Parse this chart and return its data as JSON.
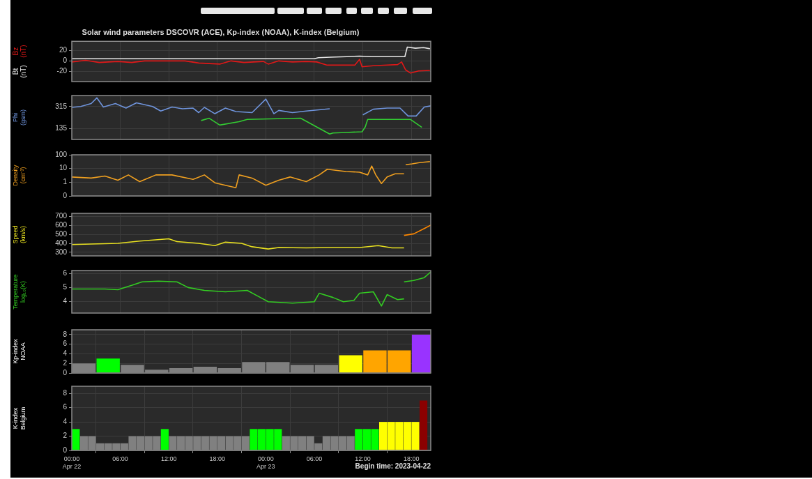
{
  "chart_data": [
    {
      "type": "line",
      "title": "Solar wind parameters DSCOVR (ACE), Kp-index (NOAA), K-index (Belgium)",
      "legend": "left",
      "grid": true,
      "tick_labels": "y",
      "marker": "none",
      "xlim": [
        "2023-04-22T00:00",
        "2023-04-23T20:24"
      ],
      "xticks": [
        {
          "value": "2023-04-22T00:00",
          "label": null
        },
        {
          "value": "2023-04-22T06:00",
          "label": null
        },
        {
          "value": "2023-04-22T12:00",
          "label": null
        },
        {
          "value": "2023-04-22T18:00",
          "label": null
        },
        {
          "value": "2023-04-23T00:00",
          "label": null
        },
        {
          "value": "2023-04-23T06:00",
          "label": null
        },
        {
          "value": "2023-04-23T12:00",
          "label": null
        },
        {
          "value": "2023-04-23T18:00",
          "label": null
        }
      ],
      "ylim": [
        -39,
        37
      ],
      "yticks": [
        -20,
        0,
        20
      ],
      "series": [
        {
          "name": "Bz (nT)",
          "color": "#e01818",
          "x": [
            "2023-04-22T00:00",
            "2023-04-22T01:42",
            "2023-04-22T03:24",
            "2023-04-22T05:42",
            "2023-04-22T07:24",
            "2023-04-22T09:00",
            "2023-04-22T12:24",
            "2023-04-22T14:00",
            "2023-04-22T15:42",
            "2023-04-22T18:18",
            "2023-04-22T19:42",
            "2023-04-22T21:18",
            "2023-04-22T23:42",
            "2023-04-23T00:18",
            "2023-04-23T01:36",
            "2023-04-23T03:18",
            "2023-04-23T05:00",
            "2023-04-23T06:18",
            "2023-04-23T07:36",
            "2023-04-23T11:00",
            "2023-04-23T11:36",
            "2023-04-23T11:54",
            "2023-04-23T13:18",
            "2023-04-23T16:18",
            "2023-04-23T16:48",
            "2023-04-23T17:18",
            "2023-04-23T17:54",
            "2023-04-23T18:54",
            "2023-04-23T20:18"
          ],
          "values": [
            -2,
            1,
            -3,
            -1,
            -3,
            0,
            0,
            0,
            -4,
            -6,
            0,
            -3,
            -1,
            -6,
            0,
            -2,
            -1,
            -2,
            -8,
            -8,
            3,
            -11,
            -9,
            -7,
            -2,
            -17,
            -23,
            -19,
            -18
          ]
        },
        {
          "name": "Bt (nT)",
          "color": "#e6e6e6",
          "x": [
            "2023-04-22T00:00",
            "2023-04-22T04:00",
            "2023-04-22T08:00",
            "2023-04-22T12:00",
            "2023-04-22T16:00",
            "2023-04-22T20:00",
            "2023-04-23T00:00",
            "2023-04-23T04:00",
            "2023-04-23T06:00",
            "2023-04-23T06:30",
            "2023-04-23T08:00",
            "2023-04-23T10:00",
            "2023-04-23T11:36",
            "2023-04-23T13:00",
            "2023-04-23T15:00",
            "2023-04-23T17:12",
            "2023-04-23T17:30",
            "2023-04-23T18:30",
            "2023-04-23T19:30",
            "2023-04-23T20:18"
          ],
          "values": [
            4,
            4,
            4,
            4,
            4,
            4,
            4,
            4,
            4,
            6,
            7,
            8,
            9,
            8,
            8,
            8,
            26,
            24,
            25,
            23
          ]
        }
      ]
    },
    {
      "type": "line",
      "ylabel": "Phi (gsm)",
      "grid": true,
      "tick_labels": "y",
      "marker": "none",
      "xlim": [
        "2023-04-22T00:00",
        "2023-04-23T20:24"
      ],
      "xticks": [
        {
          "value": "2023-04-22T00:00",
          "label": null
        },
        {
          "value": "2023-04-22T06:00",
          "label": null
        },
        {
          "value": "2023-04-22T12:00",
          "label": null
        },
        {
          "value": "2023-04-22T18:00",
          "label": null
        },
        {
          "value": "2023-04-23T00:00",
          "label": null
        },
        {
          "value": "2023-04-23T06:00",
          "label": null
        },
        {
          "value": "2023-04-23T12:00",
          "label": null
        },
        {
          "value": "2023-04-23T18:00",
          "label": null
        }
      ],
      "ylim": [
        45,
        405
      ],
      "yticks": [
        135,
        315
      ],
      "series": [
        {
          "color": "#6f94dc",
          "x": [
            "2023-04-22T00:00",
            "2023-04-22T01:06",
            "2023-04-22T02:24",
            "2023-04-22T03:06",
            "2023-04-22T03:54",
            "2023-04-22T05:24",
            "2023-04-22T06:42",
            "2023-04-22T08:00",
            "2023-04-22T10:00",
            "2023-04-22T11:00",
            "2023-04-22T12:24",
            "2023-04-22T13:42",
            "2023-04-22T15:00",
            "2023-04-22T15:42",
            "2023-04-22T16:24",
            "2023-04-22T17:42",
            "2023-04-22T19:00",
            "2023-04-22T20:18",
            "2023-04-22T22:18",
            "2023-04-23T00:00",
            "2023-04-23T01:00",
            "2023-04-23T01:36",
            "2023-04-23T03:18",
            "2023-04-23T05:00",
            "2023-04-23T07:54",
            "2023-04-23T08:06",
            "2023-04-23T12:00",
            "2023-04-23T13:18",
            "2023-04-23T15:00",
            "2023-04-23T16:36",
            "2023-04-23T17:36",
            "2023-04-23T18:36",
            "2023-04-23T19:36",
            "2023-04-23T20:24"
          ],
          "values": [
            308,
            315,
            339,
            386,
            311,
            339,
            302,
            345,
            315,
            278,
            311,
            296,
            302,
            265,
            308,
            256,
            302,
            274,
            265,
            376,
            256,
            283,
            265,
            278,
            296,
            null,
            246,
            293,
            302,
            302,
            237,
            237,
            311,
            320
          ]
        },
        {
          "color": "#33cc33",
          "x": [
            "2023-04-22T16:00",
            "2023-04-22T17:00",
            "2023-04-22T18:18",
            "2023-04-22T20:42",
            "2023-04-22T21:42",
            "2023-04-23T04:18",
            "2023-04-23T07:54",
            "2023-04-23T08:18",
            "2023-04-23T09:54",
            "2023-04-23T11:54",
            "2023-04-23T12:18",
            "2023-04-23T12:36",
            "2023-04-23T17:54",
            "2023-04-23T19:18"
          ],
          "values": [
            200,
            219,
            163,
            191,
            209,
            219,
            89,
            98,
            102,
            108,
            148,
            209,
            209,
            144
          ]
        }
      ]
    },
    {
      "type": "line",
      "ylabel": "Density (cm⁻³)",
      "grid": true,
      "tick_labels": "y",
      "marker": "none",
      "log": "y",
      "xlim": [
        "2023-04-22T00:00",
        "2023-04-23T20:24"
      ],
      "xticks": [
        {
          "value": "2023-04-22T00:00",
          "label": null
        },
        {
          "value": "2023-04-22T06:00",
          "label": null
        },
        {
          "value": "2023-04-22T12:00",
          "label": null
        },
        {
          "value": "2023-04-22T18:00",
          "label": null
        },
        {
          "value": "2023-04-23T00:00",
          "label": null
        },
        {
          "value": "2023-04-23T06:00",
          "label": null
        },
        {
          "value": "2023-04-23T12:00",
          "label": null
        },
        {
          "value": "2023-04-23T18:00",
          "label": null
        }
      ],
      "ylim": [
        0.1,
        100
      ],
      "yticks": [
        {
          "value": 0.1,
          "label": "0"
        },
        1,
        10,
        100
      ],
      "series": [
        {
          "color": "#f0a020",
          "x": [
            "2023-04-22T00:00",
            "2023-04-22T02:24",
            "2023-04-22T04:06",
            "2023-04-22T05:42",
            "2023-04-22T07:00",
            "2023-04-22T08:24",
            "2023-04-22T10:24",
            "2023-04-22T12:24",
            "2023-04-22T15:00",
            "2023-04-22T16:24",
            "2023-04-22T17:42",
            "2023-04-22T19:00",
            "2023-04-22T20:18",
            "2023-04-22T20:42",
            "2023-04-22T22:18",
            "2023-04-23T00:00",
            "2023-04-23T01:36",
            "2023-04-23T03:00",
            "2023-04-23T05:00",
            "2023-04-23T06:36",
            "2023-04-23T07:36",
            "2023-04-23T09:54",
            "2023-04-23T11:36",
            "2023-04-23T12:36",
            "2023-04-23T13:06",
            "2023-04-23T13:36",
            "2023-04-23T14:18",
            "2023-04-23T15:00",
            "2023-04-23T16:00",
            "2023-04-23T17:06"
          ],
          "values": [
            2.4,
            2.0,
            2.8,
            1.4,
            3.4,
            1.1,
            3.4,
            3.4,
            1.6,
            3.4,
            0.9,
            0.6,
            0.4,
            3.4,
            2.0,
            0.6,
            1.4,
            2.4,
            1.1,
            3.4,
            8.8,
            6.0,
            5.4,
            3.4,
            15,
            3.4,
            0.8,
            2.4,
            4.1,
            4.1
          ]
        },
        {
          "color": "#f0a020",
          "x": [
            "2023-04-23T17:18",
            "2023-04-23T18:06",
            "2023-04-23T19:00",
            "2023-04-23T20:18"
          ],
          "values": [
            19,
            22,
            27,
            32
          ]
        }
      ]
    },
    {
      "type": "line",
      "ylabel": "Speed (km/s)",
      "grid": true,
      "tick_labels": "y",
      "marker": "none",
      "xlim": [
        "2023-04-22T00:00",
        "2023-04-23T20:24"
      ],
      "xticks": [
        {
          "value": "2023-04-22T00:00",
          "label": null
        },
        {
          "value": "2023-04-22T06:00",
          "label": null
        },
        {
          "value": "2023-04-22T12:00",
          "label": null
        },
        {
          "value": "2023-04-22T18:00",
          "label": null
        },
        {
          "value": "2023-04-23T00:00",
          "label": null
        },
        {
          "value": "2023-04-23T06:00",
          "label": null
        },
        {
          "value": "2023-04-23T12:00",
          "label": null
        },
        {
          "value": "2023-04-23T18:00",
          "label": null
        }
      ],
      "ylim": [
        260,
        735
      ],
      "yticks": [
        300,
        400,
        500,
        600,
        700
      ],
      "series": [
        {
          "color": "#e8e020",
          "x": [
            "2023-04-22T00:00",
            "2023-04-22T02:24",
            "2023-04-22T05:42",
            "2023-04-22T08:24",
            "2023-04-22T12:00",
            "2023-04-22T13:00",
            "2023-04-22T15:42",
            "2023-04-22T17:42",
            "2023-04-22T19:00",
            "2023-04-22T21:00",
            "2023-04-22T22:18",
            "2023-04-23T00:18",
            "2023-04-23T01:36",
            "2023-04-23T05:00",
            "2023-04-23T08:18",
            "2023-04-23T11:36",
            "2023-04-23T13:54",
            "2023-04-23T15:36",
            "2023-04-23T17:06"
          ],
          "values": [
            387,
            392,
            400,
            425,
            451,
            420,
            400,
            375,
            413,
            400,
            362,
            337,
            354,
            349,
            354,
            354,
            375,
            349,
            349
          ]
        },
        {
          "color": "#ff8800",
          "x": [
            "2023-04-23T17:06",
            "2023-04-23T18:18",
            "2023-04-23T19:36",
            "2023-04-23T20:24"
          ],
          "values": [
            489,
            506,
            565,
            603
          ]
        }
      ]
    },
    {
      "type": "line",
      "ylabel": "Temperature log₁₀(K)",
      "grid": true,
      "tick_labels": "y",
      "marker": "none",
      "xlim": [
        "2023-04-22T00:00",
        "2023-04-23T20:24"
      ],
      "xticks": [
        {
          "value": "2023-04-22T00:00",
          "label": null
        },
        {
          "value": "2023-04-22T06:00",
          "label": null
        },
        {
          "value": "2023-04-22T12:00",
          "label": null
        },
        {
          "value": "2023-04-22T18:00",
          "label": null
        },
        {
          "value": "2023-04-23T00:00",
          "label": null
        },
        {
          "value": "2023-04-23T06:00",
          "label": null
        },
        {
          "value": "2023-04-23T12:00",
          "label": null
        },
        {
          "value": "2023-04-23T18:00",
          "label": null
        }
      ],
      "ylim": [
        3.2,
        6.2
      ],
      "yticks": [
        4,
        5,
        6
      ],
      "series": [
        {
          "color": "#33cc22",
          "x": [
            "2023-04-22T00:00",
            "2023-04-22T02:24",
            "2023-04-22T04:06",
            "2023-04-22T05:42",
            "2023-04-22T07:24",
            "2023-04-22T08:42",
            "2023-04-22T10:42",
            "2023-04-22T13:00",
            "2023-04-22T14:24",
            "2023-04-22T16:24",
            "2023-04-22T19:00",
            "2023-04-22T21:42",
            "2023-04-22T23:00",
            "2023-04-23T00:18",
            "2023-04-23T03:18",
            "2023-04-23T06:00",
            "2023-04-23T06:36",
            "2023-04-23T08:18",
            "2023-04-23T09:36",
            "2023-04-23T10:54",
            "2023-04-23T11:36",
            "2023-04-23T13:18",
            "2023-04-23T14:18",
            "2023-04-23T15:00",
            "2023-04-23T16:18",
            "2023-04-23T17:06"
          ],
          "values": [
            4.9,
            4.9,
            4.9,
            4.85,
            5.15,
            5.4,
            5.45,
            5.4,
            5.0,
            4.8,
            4.7,
            4.8,
            4.4,
            4.0,
            3.9,
            4.0,
            4.6,
            4.3,
            4.0,
            4.1,
            4.6,
            4.7,
            3.7,
            4.5,
            4.15,
            4.2
          ]
        },
        {
          "color": "#33cc22",
          "x": [
            "2023-04-23T17:06",
            "2023-04-23T18:18",
            "2023-04-23T19:36",
            "2023-04-23T20:24"
          ],
          "values": [
            5.4,
            5.5,
            5.7,
            6.1
          ]
        }
      ]
    },
    {
      "type": "bar",
      "ylabel": "Kp-index NOAA",
      "grid": true,
      "tick_labels": "y",
      "xlim": [
        "2023-04-22T00:00",
        "2023-04-23T20:24"
      ],
      "xticks": [
        {
          "value": "2023-04-22T00:00",
          "label": null
        },
        {
          "value": "2023-04-22T06:00",
          "label": null
        },
        {
          "value": "2023-04-22T12:00",
          "label": null
        },
        {
          "value": "2023-04-22T18:00",
          "label": null
        },
        {
          "value": "2023-04-23T00:00",
          "label": null
        },
        {
          "value": "2023-04-23T06:00",
          "label": null
        },
        {
          "value": "2023-04-23T12:00",
          "label": null
        },
        {
          "value": "2023-04-23T18:00",
          "label": null
        }
      ],
      "ylim": [
        0,
        9
      ],
      "yticks": [
        0,
        2,
        4,
        6,
        8
      ],
      "x": [
        "2023-04-22T01:30",
        "2023-04-22T04:30",
        "2023-04-22T07:30",
        "2023-04-22T10:30",
        "2023-04-22T13:30",
        "2023-04-22T16:30",
        "2023-04-22T19:30",
        "2023-04-22T22:30",
        "2023-04-23T01:30",
        "2023-04-23T04:30",
        "2023-04-23T07:30",
        "2023-04-23T10:30",
        "2023-04-23T13:30",
        "2023-04-23T16:30",
        "2023-04-23T19:30"
      ],
      "values": [
        2,
        3,
        1.7,
        0.7,
        1,
        1.3,
        1,
        2.3,
        2.3,
        1.7,
        1.7,
        3.7,
        4.7,
        4.7,
        8
      ],
      "colors": [
        "#808080",
        "#00ff00",
        "#808080",
        "#808080",
        "#808080",
        "#808080",
        "#808080",
        "#808080",
        "#808080",
        "#808080",
        "#808080",
        "#ffff00",
        "#ffa500",
        "#ffa500",
        "#9933ff"
      ]
    },
    {
      "type": "bar",
      "ylabel": "K-index Belgium",
      "grid": true,
      "xlim": [
        "2023-04-22T00:00",
        "2023-04-23T20:24"
      ],
      "xticks": [
        {
          "value": "2023-04-22T00:00",
          "label": "00:00\nApr 22"
        },
        {
          "value": "2023-04-22T06:00",
          "label": "06:00"
        },
        {
          "value": "2023-04-22T12:00",
          "label": "12:00"
        },
        {
          "value": "2023-04-22T18:00",
          "label": "18:00"
        },
        {
          "value": "2023-04-23T00:00",
          "label": "00:00\nApr 23"
        },
        {
          "value": "2023-04-23T06:00",
          "label": "06:00"
        },
        {
          "value": "2023-04-23T12:00",
          "label": "12:00"
        },
        {
          "value": "2023-04-23T18:00",
          "label": "18:00"
        }
      ],
      "ylim": [
        0,
        9
      ],
      "yticks": [
        0,
        2,
        4,
        6,
        8
      ],
      "x": [
        "2023-04-22T00:30",
        "2023-04-22T01:30",
        "2023-04-22T02:30",
        "2023-04-22T03:30",
        "2023-04-22T04:30",
        "2023-04-22T05:30",
        "2023-04-22T06:30",
        "2023-04-22T07:30",
        "2023-04-22T08:30",
        "2023-04-22T09:30",
        "2023-04-22T10:30",
        "2023-04-22T11:30",
        "2023-04-22T12:30",
        "2023-04-22T13:30",
        "2023-04-22T14:30",
        "2023-04-22T15:30",
        "2023-04-22T16:30",
        "2023-04-22T17:30",
        "2023-04-22T18:30",
        "2023-04-22T19:30",
        "2023-04-22T20:30",
        "2023-04-22T21:30",
        "2023-04-22T22:30",
        "2023-04-22T23:30",
        "2023-04-23T00:30",
        "2023-04-23T01:30",
        "2023-04-23T02:30",
        "2023-04-23T03:30",
        "2023-04-23T04:30",
        "2023-04-23T05:30",
        "2023-04-23T06:30",
        "2023-04-23T07:30",
        "2023-04-23T08:30",
        "2023-04-23T09:30",
        "2023-04-23T10:30",
        "2023-04-23T11:30",
        "2023-04-23T12:30",
        "2023-04-23T13:30",
        "2023-04-23T14:30",
        "2023-04-23T15:30",
        "2023-04-23T16:30",
        "2023-04-23T17:30",
        "2023-04-23T18:30",
        "2023-04-23T19:30"
      ],
      "values": [
        3,
        2,
        2,
        1,
        1,
        1,
        1,
        2,
        2,
        2,
        2,
        3,
        2,
        2,
        2,
        2,
        2,
        2,
        2,
        2,
        2,
        2,
        3,
        3,
        3,
        3,
        2,
        2,
        2,
        2,
        1,
        2,
        2,
        2,
        2,
        3,
        3,
        3,
        4,
        4,
        4,
        4,
        4,
        7
      ],
      "colors": [
        "#00ff00",
        "#808080",
        "#808080",
        "#808080",
        "#808080",
        "#808080",
        "#808080",
        "#808080",
        "#808080",
        "#808080",
        "#808080",
        "#00ff00",
        "#808080",
        "#808080",
        "#808080",
        "#808080",
        "#808080",
        "#808080",
        "#808080",
        "#808080",
        "#808080",
        "#808080",
        "#00ff00",
        "#00ff00",
        "#00ff00",
        "#00ff00",
        "#808080",
        "#808080",
        "#808080",
        "#808080",
        "#808080",
        "#808080",
        "#808080",
        "#808080",
        "#808080",
        "#00ff00",
        "#00ff00",
        "#00ff00",
        "#ffff00",
        "#ffff00",
        "#ffff00",
        "#ffff00",
        "#ffff00",
        "#8b0000"
      ],
      "annotations": [
        "Begin time: 2023-04-22"
      ]
    }
  ]
}
